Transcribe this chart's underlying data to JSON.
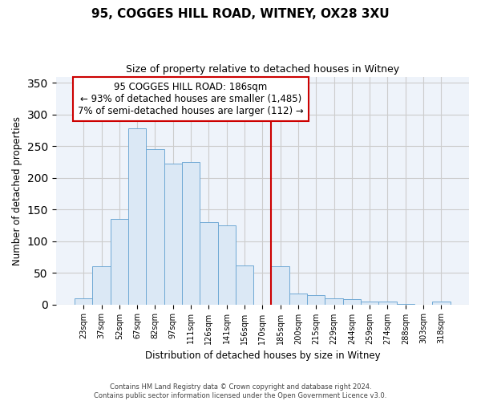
{
  "title": "95, COGGES HILL ROAD, WITNEY, OX28 3XU",
  "subtitle": "Size of property relative to detached houses in Witney",
  "xlabel": "Distribution of detached houses by size in Witney",
  "ylabel": "Number of detached properties",
  "bar_color": "#dbe8f5",
  "bar_edge_color": "#6fa8d4",
  "plot_bg_color": "#eef3fa",
  "categories": [
    "23sqm",
    "37sqm",
    "52sqm",
    "67sqm",
    "82sqm",
    "97sqm",
    "111sqm",
    "126sqm",
    "141sqm",
    "156sqm",
    "170sqm",
    "185sqm",
    "200sqm",
    "215sqm",
    "229sqm",
    "244sqm",
    "259sqm",
    "274sqm",
    "288sqm",
    "303sqm",
    "318sqm"
  ],
  "values": [
    10,
    60,
    135,
    278,
    245,
    222,
    225,
    130,
    125,
    62,
    0,
    60,
    17,
    15,
    10,
    8,
    4,
    5,
    1,
    0,
    4
  ],
  "ylim": [
    0,
    360
  ],
  "yticks": [
    0,
    50,
    100,
    150,
    200,
    250,
    300,
    350
  ],
  "vline_idx": 11,
  "vline_color": "#cc0000",
  "annotation_title": "95 COGGES HILL ROAD: 186sqm",
  "annotation_line1": "← 93% of detached houses are smaller (1,485)",
  "annotation_line2": "7% of semi-detached houses are larger (112) →",
  "annotation_box_color": "#ffffff",
  "annotation_box_edge": "#cc0000",
  "footer1": "Contains HM Land Registry data © Crown copyright and database right 2024.",
  "footer2": "Contains public sector information licensed under the Open Government Licence v3.0.",
  "background_color": "#ffffff",
  "grid_color": "#cccccc"
}
